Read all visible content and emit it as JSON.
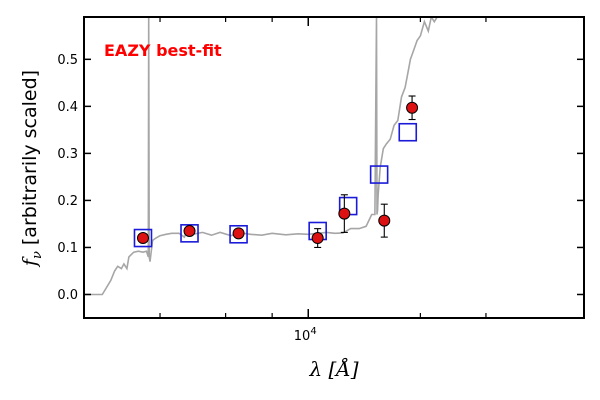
{
  "chart_data": {
    "type": "scatter",
    "annotation": "EAZY best-fit",
    "xlabel": "λ [Å]",
    "ylabel_prefix": "f",
    "ylabel_sub": "ν",
    "ylabel_rest": " [arbitrarily scaled]",
    "x_scale": "log",
    "xlim": [
      2500,
      55000
    ],
    "ylim": [
      -0.05,
      0.59
    ],
    "y_ticks": [
      0.0,
      0.1,
      0.2,
      0.3,
      0.4,
      0.5
    ],
    "y_tick_labels": [
      "0.0",
      "0.1",
      "0.2",
      "0.3",
      "0.4",
      "0.5"
    ],
    "x_major_ticks": [
      10000
    ],
    "x_major_tick_labels_base": "10",
    "x_major_tick_labels_exp": "4",
    "x_minor_ticks": [
      4000,
      6000,
      8000,
      20000,
      30000
    ],
    "observed": {
      "x": [
        3600,
        4800,
        6500,
        10600,
        12500,
        16000,
        19000
      ],
      "y": [
        0.12,
        0.135,
        0.13,
        0.12,
        0.172,
        0.157,
        0.397
      ],
      "yerr": [
        0.005,
        0.005,
        0.005,
        0.02,
        0.04,
        0.035,
        0.025
      ]
    },
    "model_photometry": {
      "x": [
        3600,
        4800,
        6500,
        10600,
        12800,
        15500,
        18500
      ],
      "y": [
        0.12,
        0.13,
        0.128,
        0.135,
        0.188,
        0.255,
        0.345
      ]
    },
    "sed": {
      "x": [
        2500,
        2800,
        2950,
        3020,
        3080,
        3150,
        3200,
        3260,
        3300,
        3400,
        3500,
        3600,
        3680,
        3720,
        3730,
        3740,
        3760,
        3820,
        3900,
        4000,
        4150,
        4300,
        4500,
        4650,
        4750,
        4900,
        5200,
        5500,
        5800,
        6200,
        6600,
        7000,
        7500,
        8000,
        8700,
        9400,
        10000,
        10600,
        11200,
        11800,
        12400,
        13000,
        13700,
        14300,
        14800,
        15100,
        15250,
        15300,
        15350,
        15400,
        15600,
        15900,
        16200,
        16600,
        17000,
        17400,
        17800,
        18200,
        18500,
        18800,
        19200,
        19600,
        20000,
        20500,
        21000,
        21400,
        21800,
        22200,
        22600,
        23000
      ],
      "y": [
        0.0,
        0.0,
        0.03,
        0.05,
        0.06,
        0.055,
        0.065,
        0.055,
        0.08,
        0.09,
        0.092,
        0.09,
        0.092,
        0.08,
        0.59,
        0.08,
        0.07,
        0.115,
        0.12,
        0.125,
        0.128,
        0.13,
        0.13,
        0.122,
        0.138,
        0.128,
        0.132,
        0.126,
        0.132,
        0.125,
        0.131,
        0.128,
        0.126,
        0.13,
        0.127,
        0.129,
        0.128,
        0.13,
        0.132,
        0.13,
        0.131,
        0.14,
        0.14,
        0.145,
        0.17,
        0.17,
        0.59,
        0.17,
        0.18,
        0.21,
        0.27,
        0.31,
        0.32,
        0.33,
        0.36,
        0.37,
        0.42,
        0.44,
        0.47,
        0.5,
        0.52,
        0.54,
        0.55,
        0.58,
        0.56,
        0.59,
        0.58,
        0.59,
        0.59,
        0.59
      ]
    },
    "colors": {
      "sed_line": "#a6a6a6",
      "observed_fill": "#dd1111",
      "model_box": "#1a1ad8",
      "annotation": "#ff0000"
    }
  }
}
